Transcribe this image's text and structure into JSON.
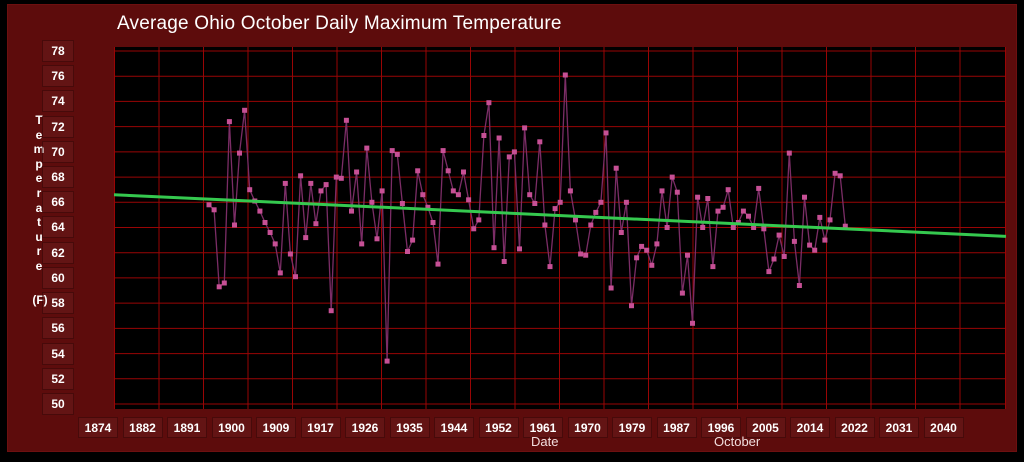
{
  "title": "Average Ohio October Daily Maximum Temperature",
  "y_axis": {
    "title_vertical": "Temperature",
    "unit_label": "(F)",
    "ticks": [
      78,
      76,
      74,
      72,
      70,
      68,
      66,
      64,
      62,
      60,
      58,
      56,
      54,
      52,
      50
    ]
  },
  "x_axis": {
    "label": "Date",
    "sub_label": "October",
    "ticks": [
      1874,
      1882,
      1891,
      1900,
      1909,
      1917,
      1926,
      1935,
      1944,
      1952,
      1961,
      1970,
      1979,
      1987,
      1996,
      2005,
      2014,
      2022,
      2031,
      2040
    ]
  },
  "colors": {
    "background": "#5d0c0c",
    "frame": "#000000",
    "plot_background": "#000000",
    "grid": "#990505",
    "series_line": "#7b2d66",
    "series_marker": "#c65095",
    "trend_line": "#35c94f",
    "text": "#ffffff"
  },
  "chart_data": {
    "type": "line",
    "title": "Average Ohio October Daily Maximum Temperature",
    "xlabel": "Date",
    "x_sublabel": "October",
    "ylabel": "Temperature (F)",
    "ylim": [
      50,
      78
    ],
    "grid": true,
    "legend": false,
    "x": [
      1893,
      1894,
      1895,
      1896,
      1897,
      1898,
      1899,
      1900,
      1901,
      1902,
      1903,
      1904,
      1905,
      1906,
      1907,
      1908,
      1909,
      1910,
      1911,
      1912,
      1913,
      1914,
      1915,
      1916,
      1917,
      1918,
      1919,
      1920,
      1921,
      1922,
      1923,
      1924,
      1925,
      1926,
      1927,
      1928,
      1929,
      1930,
      1931,
      1932,
      1933,
      1934,
      1935,
      1936,
      1937,
      1938,
      1939,
      1940,
      1941,
      1942,
      1943,
      1944,
      1945,
      1946,
      1947,
      1948,
      1949,
      1950,
      1951,
      1952,
      1953,
      1954,
      1955,
      1956,
      1957,
      1958,
      1959,
      1960,
      1961,
      1962,
      1963,
      1964,
      1965,
      1966,
      1967,
      1968,
      1969,
      1970,
      1971,
      1972,
      1973,
      1974,
      1975,
      1976,
      1977,
      1978,
      1979,
      1980,
      1981,
      1982,
      1983,
      1984,
      1985,
      1986,
      1987,
      1988,
      1989,
      1990,
      1991,
      1992,
      1993,
      1994,
      1995,
      1996,
      1997,
      1998,
      1999,
      2000,
      2001,
      2002,
      2003,
      2004,
      2005,
      2006,
      2007,
      2008,
      2009,
      2010,
      2011,
      2012,
      2013,
      2014,
      2015,
      2016,
      2017,
      2018
    ],
    "values": [
      65.8,
      65.4,
      59.3,
      59.6,
      72.4,
      64.2,
      69.9,
      73.3,
      67.0,
      66.1,
      65.3,
      64.4,
      63.6,
      62.7,
      60.4,
      67.5,
      61.9,
      60.1,
      68.1,
      63.2,
      67.5,
      64.3,
      66.9,
      67.4,
      57.4,
      68.0,
      67.9,
      72.5,
      65.3,
      68.4,
      62.7,
      70.3,
      66.0,
      63.1,
      66.9,
      53.4,
      70.1,
      69.8,
      65.9,
      62.1,
      63.0,
      68.5,
      66.6,
      65.6,
      64.4,
      61.1,
      70.1,
      68.5,
      66.9,
      66.6,
      68.4,
      66.2,
      63.9,
      64.6,
      71.3,
      73.9,
      62.4,
      71.1,
      61.3,
      69.6,
      70.0,
      62.3,
      71.9,
      66.6,
      65.9,
      70.8,
      64.2,
      60.9,
      65.5,
      66.0,
      76.1,
      66.9,
      64.6,
      61.9,
      61.8,
      64.2,
      65.2,
      66.0,
      71.5,
      59.2,
      68.7,
      63.6,
      66.0,
      57.8,
      61.6,
      62.5,
      62.2,
      61.0,
      62.7,
      66.9,
      64.0,
      68.0,
      66.8,
      58.8,
      61.8,
      56.4,
      66.4,
      64.0,
      66.3,
      60.9,
      65.3,
      65.6,
      67.0,
      64.0,
      64.4,
      65.3,
      64.9,
      64.0,
      67.1,
      63.9,
      60.5,
      61.5,
      63.4,
      61.7,
      69.9,
      62.9,
      59.4,
      66.4,
      62.6,
      62.2,
      64.8,
      63.0,
      64.6,
      68.3,
      68.1,
      64.1
    ],
    "trend_line": {
      "start_value": 66.6,
      "end_value": 63.3
    }
  }
}
